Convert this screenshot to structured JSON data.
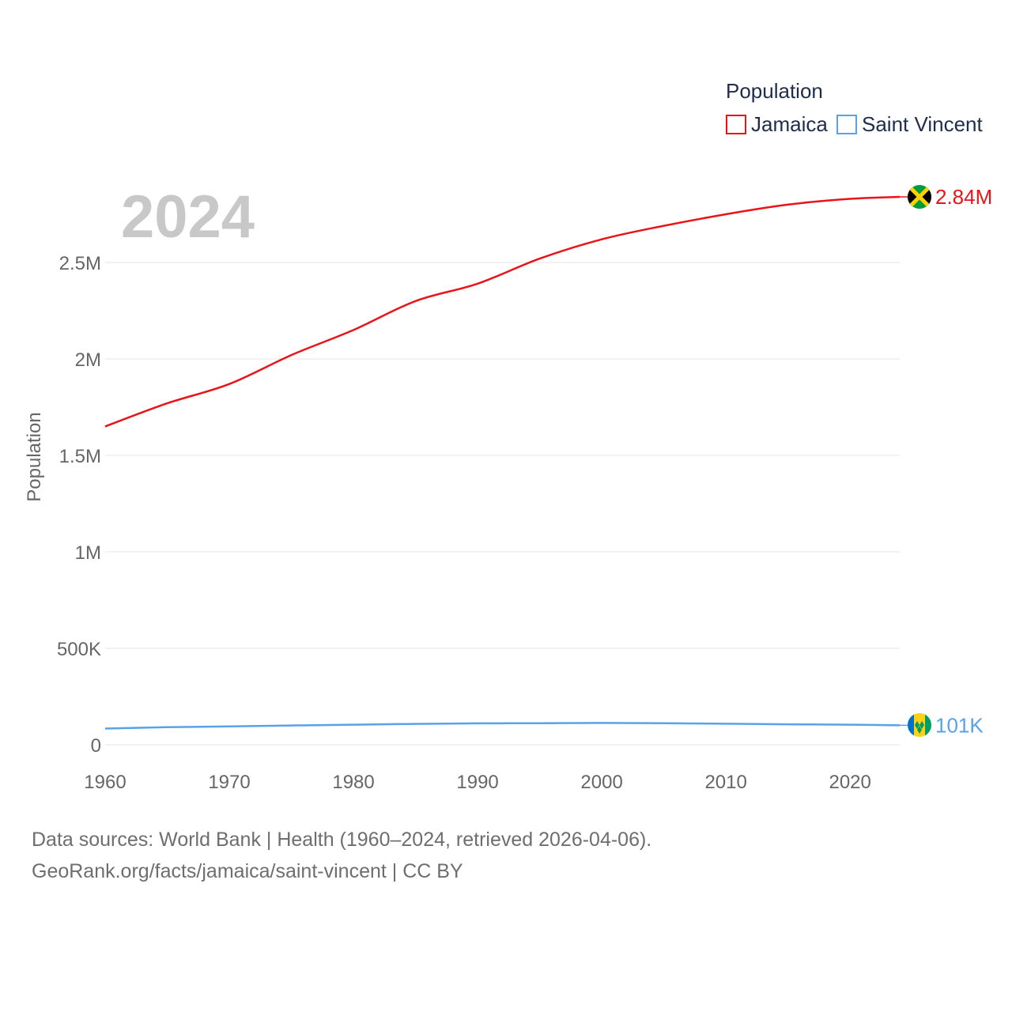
{
  "chart_data": {
    "type": "line",
    "title": "",
    "xlabel": "",
    "ylabel": "Population",
    "current_year_label": "2024",
    "xlim": [
      1960,
      2024
    ],
    "ylim": [
      0,
      2900000
    ],
    "x_ticks": [
      1960,
      1970,
      1980,
      1990,
      2000,
      2010,
      2020
    ],
    "x_tick_labels": [
      "1960",
      "1970",
      "1980",
      "1990",
      "2000",
      "2010",
      "2020"
    ],
    "y_ticks": [
      0,
      500000,
      1000000,
      1500000,
      2000000,
      2500000
    ],
    "y_tick_labels": [
      "0",
      "500K",
      "1M",
      "1.5M",
      "2M",
      "2.5M"
    ],
    "legend": {
      "title": "Population",
      "position": "top-right"
    },
    "x": [
      1960,
      1965,
      1970,
      1975,
      1980,
      1985,
      1990,
      1995,
      2000,
      2005,
      2010,
      2015,
      2020,
      2024
    ],
    "series": [
      {
        "name": "Jamaica",
        "color": "#e8141a",
        "flag_icon": "jamaica-flag-icon",
        "end_label": "2.84M",
        "values": [
          1650000,
          1770000,
          1870000,
          2020000,
          2150000,
          2300000,
          2390000,
          2520000,
          2620000,
          2690000,
          2750000,
          2800000,
          2830000,
          2840000
        ]
      },
      {
        "name": "Saint Vincent",
        "color": "#5aa2e8",
        "flag_icon": "saint-vincent-flag-icon",
        "end_label": "101K",
        "values": [
          84000,
          91000,
          95000,
          100000,
          104000,
          108000,
          111000,
          112000,
          113000,
          112000,
          109000,
          106000,
          104000,
          101000
        ]
      }
    ]
  },
  "footer": {
    "line1": "Data sources: World Bank | Health (1960–2024, retrieved 2026-04-06).",
    "line2": "GeoRank.org/facts/jamaica/saint-vincent | CC BY"
  }
}
